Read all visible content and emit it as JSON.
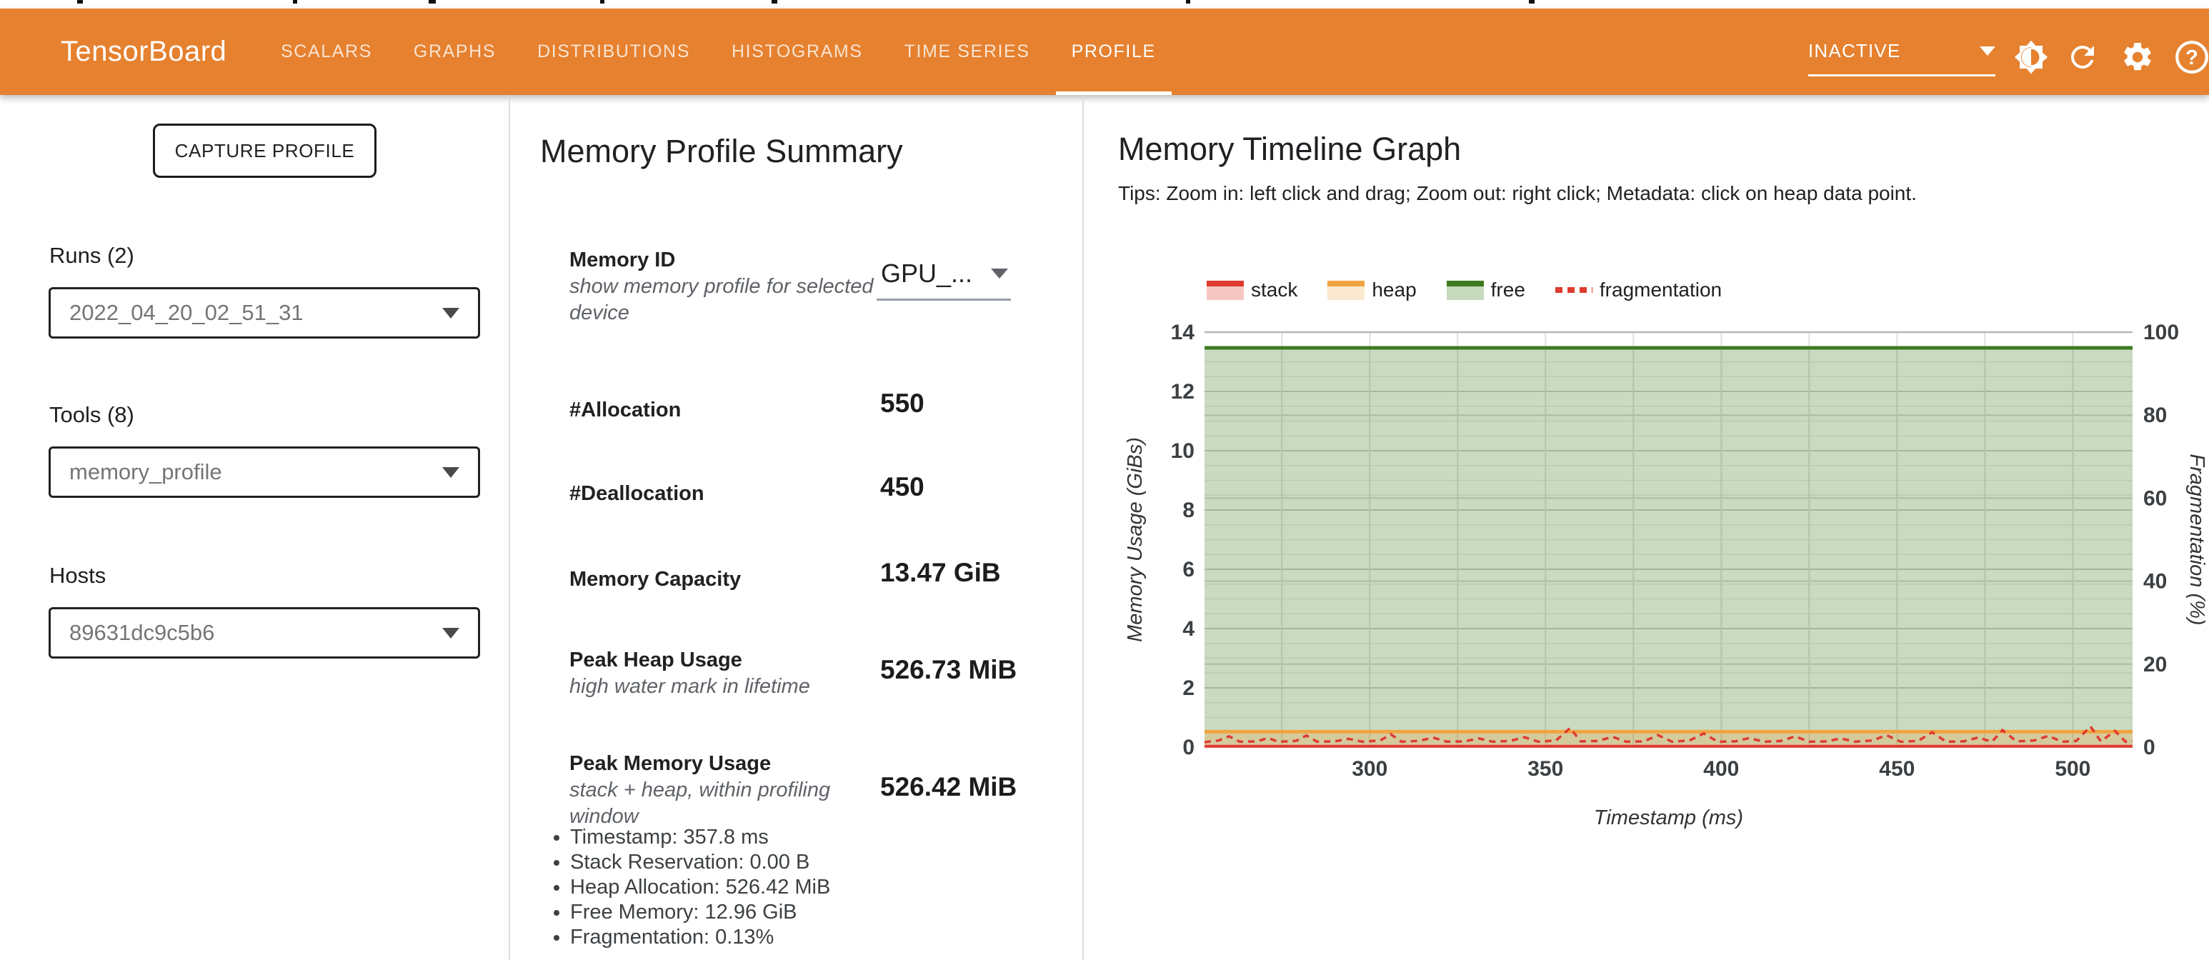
{
  "topbar": {
    "logo": "TensorBoard",
    "tabs": [
      {
        "label": "SCALARS",
        "active": false
      },
      {
        "label": "GRAPHS",
        "active": false
      },
      {
        "label": "DISTRIBUTIONS",
        "active": false
      },
      {
        "label": "HISTOGRAMS",
        "active": false
      },
      {
        "label": "TIME SERIES",
        "active": false
      },
      {
        "label": "PROFILE",
        "active": true
      }
    ],
    "status_dropdown": {
      "value": "INACTIVE"
    },
    "icons": [
      "brightness-icon",
      "refresh-icon",
      "settings-icon",
      "help-icon"
    ],
    "accent_color": "#e6812f"
  },
  "sidebar": {
    "capture_button": {
      "label": "CAPTURE PROFILE"
    },
    "runs": {
      "label": "Runs (2)",
      "value": "2022_04_20_02_51_31"
    },
    "tools": {
      "label": "Tools (8)",
      "value": "memory_profile"
    },
    "hosts": {
      "label": "Hosts",
      "value": "89631dc9c5b6"
    }
  },
  "summary": {
    "title": "Memory Profile Summary",
    "memory_id": {
      "label": "Memory ID",
      "desc": "show memory profile for selected device",
      "value": "GPU_..."
    },
    "allocation": {
      "label": "#Allocation",
      "value": "550"
    },
    "deallocation": {
      "label": "#Deallocation",
      "value": "450"
    },
    "capacity": {
      "label": "Memory Capacity",
      "value": "13.47 GiB"
    },
    "peak_heap": {
      "label": "Peak Heap Usage",
      "desc": "high water mark in lifetime",
      "value": "526.73 MiB"
    },
    "peak_memory": {
      "label": "Peak Memory Usage",
      "desc": "stack + heap, within profiling window",
      "value": "526.42 MiB",
      "details": [
        "Timestamp: 357.8 ms",
        "Stack Reservation: 0.00 B",
        "Heap Allocation: 526.42 MiB",
        "Free Memory: 12.96 GiB",
        "Fragmentation: 0.13%"
      ]
    }
  },
  "timeline": {
    "title": "Memory Timeline Graph",
    "tips": "Tips: Zoom in: left click and drag; Zoom out: right click; Metadata: click on heap data point.",
    "legend": [
      {
        "label": "stack",
        "line": "#e03b2f",
        "fill": "#f6c7c2"
      },
      {
        "label": "heap",
        "line": "#f0a441",
        "fill": "#fbe9cf"
      },
      {
        "label": "free",
        "line": "#3d7b20",
        "fill": "#c7d9bd"
      },
      {
        "label": "fragmentation",
        "line": "#e03b2f",
        "fill": "none"
      }
    ]
  },
  "chart_data": {
    "type": "area",
    "title": "Memory Timeline Graph",
    "xlabel": "Timestamp (ms)",
    "ylabel_left": "Memory Usage (GiBs)",
    "ylabel_right": "Fragmentation (%)",
    "xlim": [
      253,
      517
    ],
    "ylim_left": [
      0,
      14
    ],
    "ylim_right": [
      0,
      100
    ],
    "x_ticks": [
      300,
      350,
      400,
      450,
      500
    ],
    "x_minor_step": 25,
    "y_ticks_left": [
      0,
      2,
      4,
      6,
      8,
      10,
      12,
      14
    ],
    "y_ticks_right": [
      0,
      20,
      40,
      60,
      80,
      100
    ],
    "grid": true,
    "legend_position": "top",
    "series": [
      {
        "name": "free",
        "axis": "left",
        "style": "area",
        "line_color": "#3d7b20",
        "fill_color": "rgba(61,123,32,0.28)",
        "value_gib": 13.47
      },
      {
        "name": "heap",
        "axis": "left",
        "style": "area",
        "line_color": "#f0a441",
        "fill_color": "rgba(240,164,65,0.28)",
        "value_gib": 0.52
      },
      {
        "name": "stack",
        "axis": "left",
        "style": "area",
        "line_color": "#e03b2f",
        "fill_color": "rgba(224,59,47,0.25)",
        "value_gib": 0.03
      },
      {
        "name": "fragmentation",
        "axis": "right",
        "style": "dashed_line",
        "line_color": "#e03b2f",
        "points_t_pct": [
          [
            253,
            1.2
          ],
          [
            257,
            1.6
          ],
          [
            260,
            2.6
          ],
          [
            263,
            1.3
          ],
          [
            268,
            1.4
          ],
          [
            271,
            2.2
          ],
          [
            274,
            1.3
          ],
          [
            279,
            1.5
          ],
          [
            282,
            2.8
          ],
          [
            285,
            1.3
          ],
          [
            290,
            1.4
          ],
          [
            294,
            2.0
          ],
          [
            298,
            1.3
          ],
          [
            303,
            1.6
          ],
          [
            306,
            3.1
          ],
          [
            309,
            1.3
          ],
          [
            314,
            1.5
          ],
          [
            318,
            2.3
          ],
          [
            322,
            1.3
          ],
          [
            327,
            1.4
          ],
          [
            331,
            2.1
          ],
          [
            335,
            1.3
          ],
          [
            340,
            1.5
          ],
          [
            344,
            2.4
          ],
          [
            348,
            1.3
          ],
          [
            353,
            1.6
          ],
          [
            357,
            4.6
          ],
          [
            360,
            1.4
          ],
          [
            365,
            1.5
          ],
          [
            369,
            2.5
          ],
          [
            373,
            1.3
          ],
          [
            378,
            1.4
          ],
          [
            382,
            2.9
          ],
          [
            386,
            1.3
          ],
          [
            391,
            1.6
          ],
          [
            395,
            3.3
          ],
          [
            399,
            1.3
          ],
          [
            404,
            1.4
          ],
          [
            408,
            2.2
          ],
          [
            412,
            1.3
          ],
          [
            417,
            1.5
          ],
          [
            421,
            2.6
          ],
          [
            425,
            1.3
          ],
          [
            430,
            1.4
          ],
          [
            434,
            2.1
          ],
          [
            438,
            1.3
          ],
          [
            443,
            1.6
          ],
          [
            447,
            2.9
          ],
          [
            451,
            1.3
          ],
          [
            456,
            1.5
          ],
          [
            460,
            3.6
          ],
          [
            464,
            1.3
          ],
          [
            469,
            1.4
          ],
          [
            473,
            2.3
          ],
          [
            477,
            1.3
          ],
          [
            480,
            4.1
          ],
          [
            484,
            1.4
          ],
          [
            489,
            1.6
          ],
          [
            493,
            2.7
          ],
          [
            497,
            1.3
          ],
          [
            501,
            1.5
          ],
          [
            505,
            5.0
          ],
          [
            508,
            1.4
          ],
          [
            512,
            3.9
          ],
          [
            515,
            1.3
          ],
          [
            517,
            1.4
          ]
        ]
      }
    ]
  }
}
